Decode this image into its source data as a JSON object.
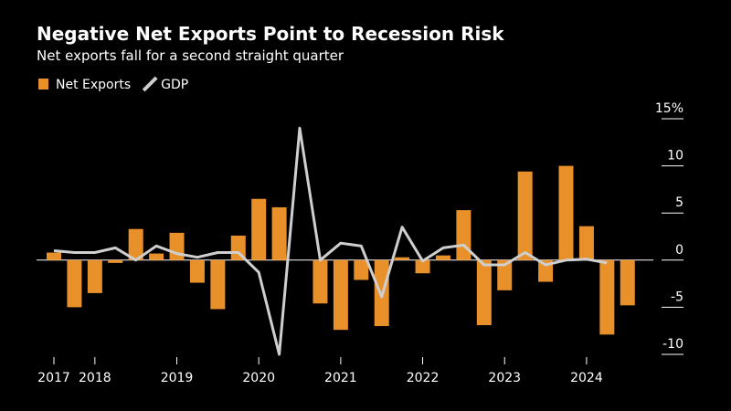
{
  "chart_data": {
    "type": "bar",
    "title": "Negative Net Exports Point to Recession Risk",
    "subtitle": "Net exports fall for a second straight quarter",
    "categories": [
      "2017",
      null,
      "2018",
      null,
      null,
      null,
      "2019",
      null,
      null,
      null,
      "2020",
      null,
      null,
      null,
      "2021",
      null,
      null,
      null,
      "2022",
      null,
      null,
      null,
      "2023",
      null,
      null,
      null,
      "2024",
      null,
      null
    ],
    "series": [
      {
        "name": "Net Exports",
        "type": "bar",
        "color": "#e8912b",
        "values": [
          0.8,
          -5.0,
          -3.5,
          -0.3,
          3.3,
          0.7,
          2.9,
          -2.4,
          -5.2,
          2.6,
          6.5,
          5.6,
          0.0,
          -4.6,
          -7.4,
          -2.1,
          -7.0,
          0.3,
          -1.4,
          0.5,
          5.3,
          -6.9,
          -3.2,
          9.4,
          -2.3,
          10.0,
          3.6,
          -7.9,
          -4.8
        ]
      },
      {
        "name": "GDP",
        "type": "line",
        "color": "#cfcfcf",
        "values": [
          1.0,
          0.8,
          0.8,
          1.3,
          0.0,
          1.5,
          0.7,
          0.3,
          0.8,
          0.8,
          -1.3,
          -10.0,
          14.0,
          0.0,
          1.8,
          1.5,
          -3.9,
          3.5,
          -0.1,
          1.3,
          1.6,
          -0.5,
          -0.5,
          0.8,
          -0.5,
          0.0,
          0.1,
          -0.3,
          null
        ]
      }
    ],
    "ylim": [
      -10,
      15
    ],
    "yticks": [
      -10,
      -5,
      0,
      5,
      10,
      {
        "value": 15,
        "label": "15%"
      }
    ],
    "legend": "top-left"
  }
}
